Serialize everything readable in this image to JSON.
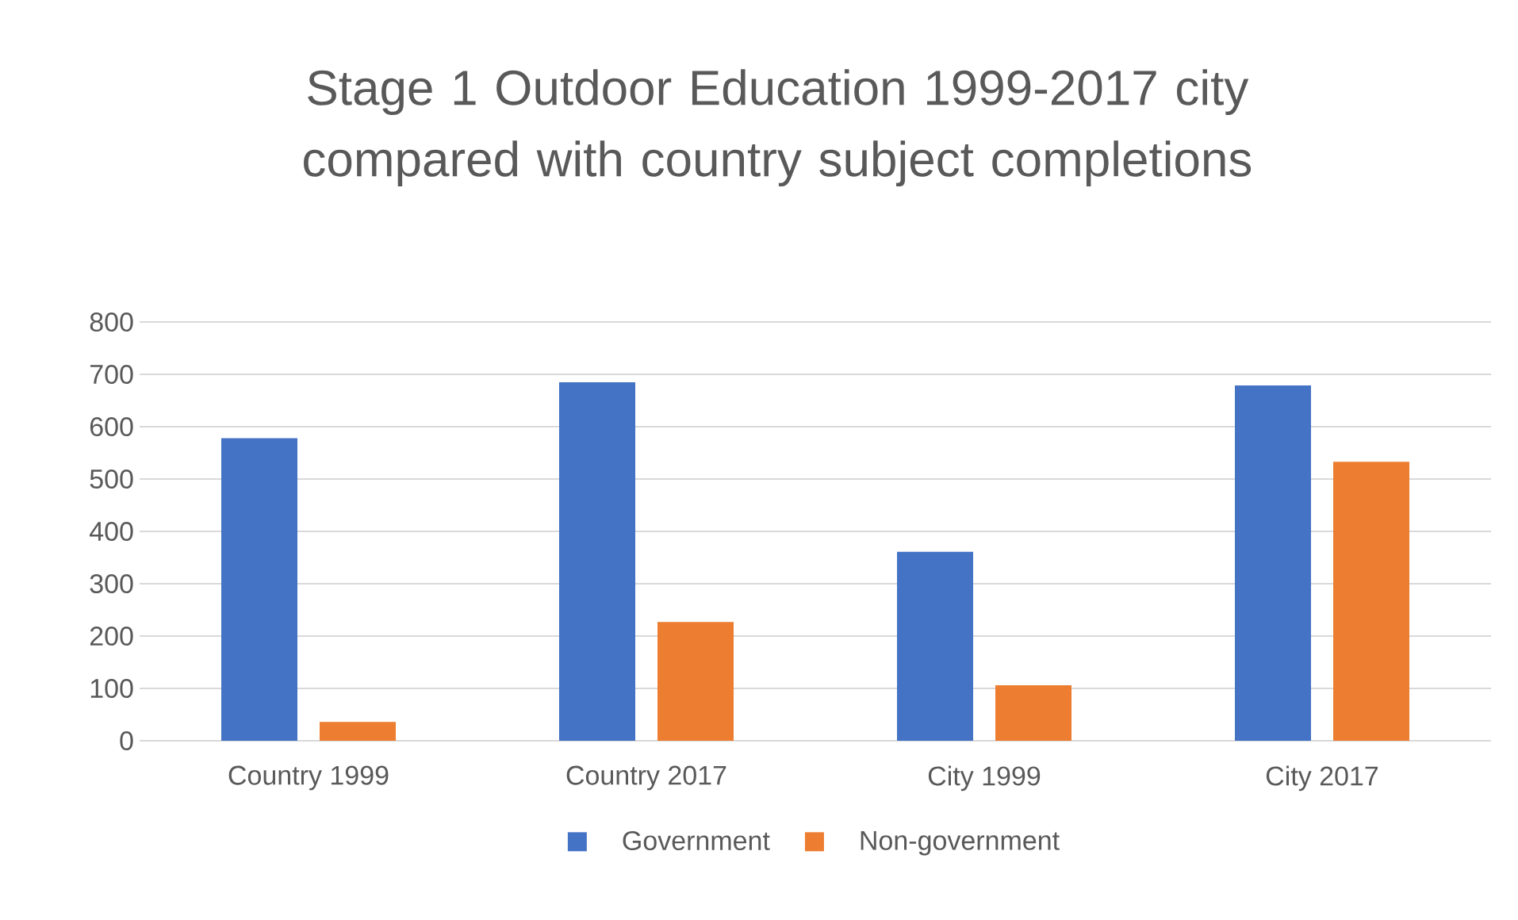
{
  "chart_data": {
    "type": "bar",
    "title": "Stage 1 Outdoor Education 1999-2017 city compared with country subject completions",
    "categories": [
      "Country 1999",
      "Country 2017",
      "City 1999",
      "City 2017"
    ],
    "series": [
      {
        "name": "Government",
        "color": "#4472c4",
        "values": [
          578,
          685,
          361,
          679
        ]
      },
      {
        "name": "Non-government",
        "color": "#ed7d31",
        "values": [
          36,
          227,
          106,
          533
        ]
      }
    ],
    "ylim": [
      0,
      800
    ],
    "yticks": [
      0,
      100,
      200,
      300,
      400,
      500,
      600,
      700,
      800
    ],
    "grid": "y",
    "legend": "bottom"
  }
}
